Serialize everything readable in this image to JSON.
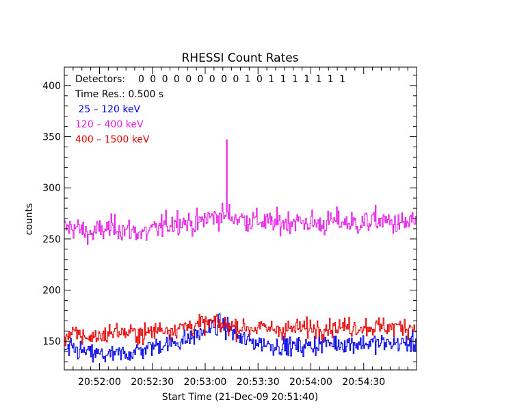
{
  "chart_data": {
    "type": "line",
    "title": "RHESSI Count Rates",
    "xlabel": "Start Time (21-Dec-09 20:51:40)",
    "ylabel": "counts",
    "x_unit": "seconds after 20:51:40",
    "xlim": [
      0,
      200
    ],
    "ylim": [
      122,
      418
    ],
    "x_ticks": [
      20,
      50,
      80,
      110,
      140,
      170
    ],
    "x_tick_labels": [
      "20:52:00",
      "20:52:30",
      "20:53:00",
      "20:53:30",
      "20:54:00",
      "20:54:30"
    ],
    "y_ticks": [
      150,
      200,
      250,
      300,
      350,
      400
    ],
    "y_tick_labels": [
      "150",
      "200",
      "250",
      "300",
      "350",
      "400"
    ],
    "grid": false,
    "annotations": {
      "detectors_label": "Detectors:",
      "detectors": [
        "0",
        "0",
        "0",
        "0",
        "0",
        "0",
        "0",
        "0",
        "0",
        "1",
        "0",
        "1",
        "1",
        "1",
        "1",
        "1",
        "1",
        "1"
      ],
      "time_res": "Time Res.: 0.500 s"
    },
    "legend_position": "top-left",
    "series": [
      {
        "name": " 25 – 120 keV",
        "color": "#0000e6",
        "sample_interval": 0.5,
        "x": [
          0,
          5,
          10,
          15,
          20,
          25,
          30,
          35,
          40,
          45,
          50,
          55,
          60,
          65,
          70,
          75,
          80,
          85,
          90,
          95,
          100,
          105,
          110,
          115,
          120,
          125,
          130,
          135,
          140,
          145,
          150,
          155,
          160,
          165,
          170,
          175,
          180,
          185,
          190,
          195,
          200
        ],
        "values": [
          140,
          142,
          140,
          138,
          137,
          136,
          137,
          138,
          140,
          142,
          145,
          147,
          148,
          150,
          152,
          156,
          160,
          165,
          165,
          160,
          152,
          150,
          149,
          147,
          146,
          145,
          145,
          145,
          146,
          147,
          148,
          148,
          148,
          148,
          148,
          148,
          148,
          148,
          148,
          148,
          148
        ],
        "noise": 12
      },
      {
        "name": "120 – 400 keV",
        "color": "#e61ae6",
        "sample_interval": 0.5,
        "x": [
          0,
          5,
          10,
          15,
          20,
          25,
          30,
          35,
          40,
          45,
          50,
          55,
          60,
          65,
          70,
          75,
          80,
          85,
          90,
          95,
          100,
          105,
          110,
          115,
          120,
          125,
          130,
          135,
          140,
          145,
          150,
          155,
          160,
          165,
          170,
          175,
          180,
          185,
          190,
          195,
          200
        ],
        "values": [
          260,
          262,
          258,
          255,
          258,
          260,
          262,
          258,
          258,
          255,
          258,
          262,
          265,
          268,
          266,
          264,
          270,
          272,
          273,
          272,
          270,
          268,
          268,
          266,
          265,
          266,
          268,
          266,
          266,
          264,
          266,
          268,
          266,
          265,
          266,
          268,
          268,
          266,
          264,
          266,
          268
        ],
        "noise": 15
      },
      {
        "name": "400 – 1500 keV",
        "color": "#e60000",
        "sample_interval": 0.5,
        "x": [
          0,
          5,
          10,
          15,
          20,
          25,
          30,
          35,
          40,
          45,
          50,
          55,
          60,
          65,
          70,
          75,
          80,
          85,
          90,
          95,
          100,
          105,
          110,
          115,
          120,
          125,
          130,
          135,
          140,
          145,
          150,
          155,
          160,
          165,
          170,
          175,
          180,
          185,
          190,
          195,
          200
        ],
        "values": [
          155,
          157,
          155,
          154,
          155,
          158,
          160,
          158,
          158,
          157,
          160,
          162,
          162,
          163,
          165,
          166,
          167,
          168,
          166,
          165,
          164,
          163,
          163,
          162,
          162,
          162,
          162,
          163,
          163,
          163,
          164,
          164,
          164,
          164,
          164,
          164,
          164,
          164,
          164,
          164,
          164
        ],
        "noise": 12
      }
    ]
  }
}
